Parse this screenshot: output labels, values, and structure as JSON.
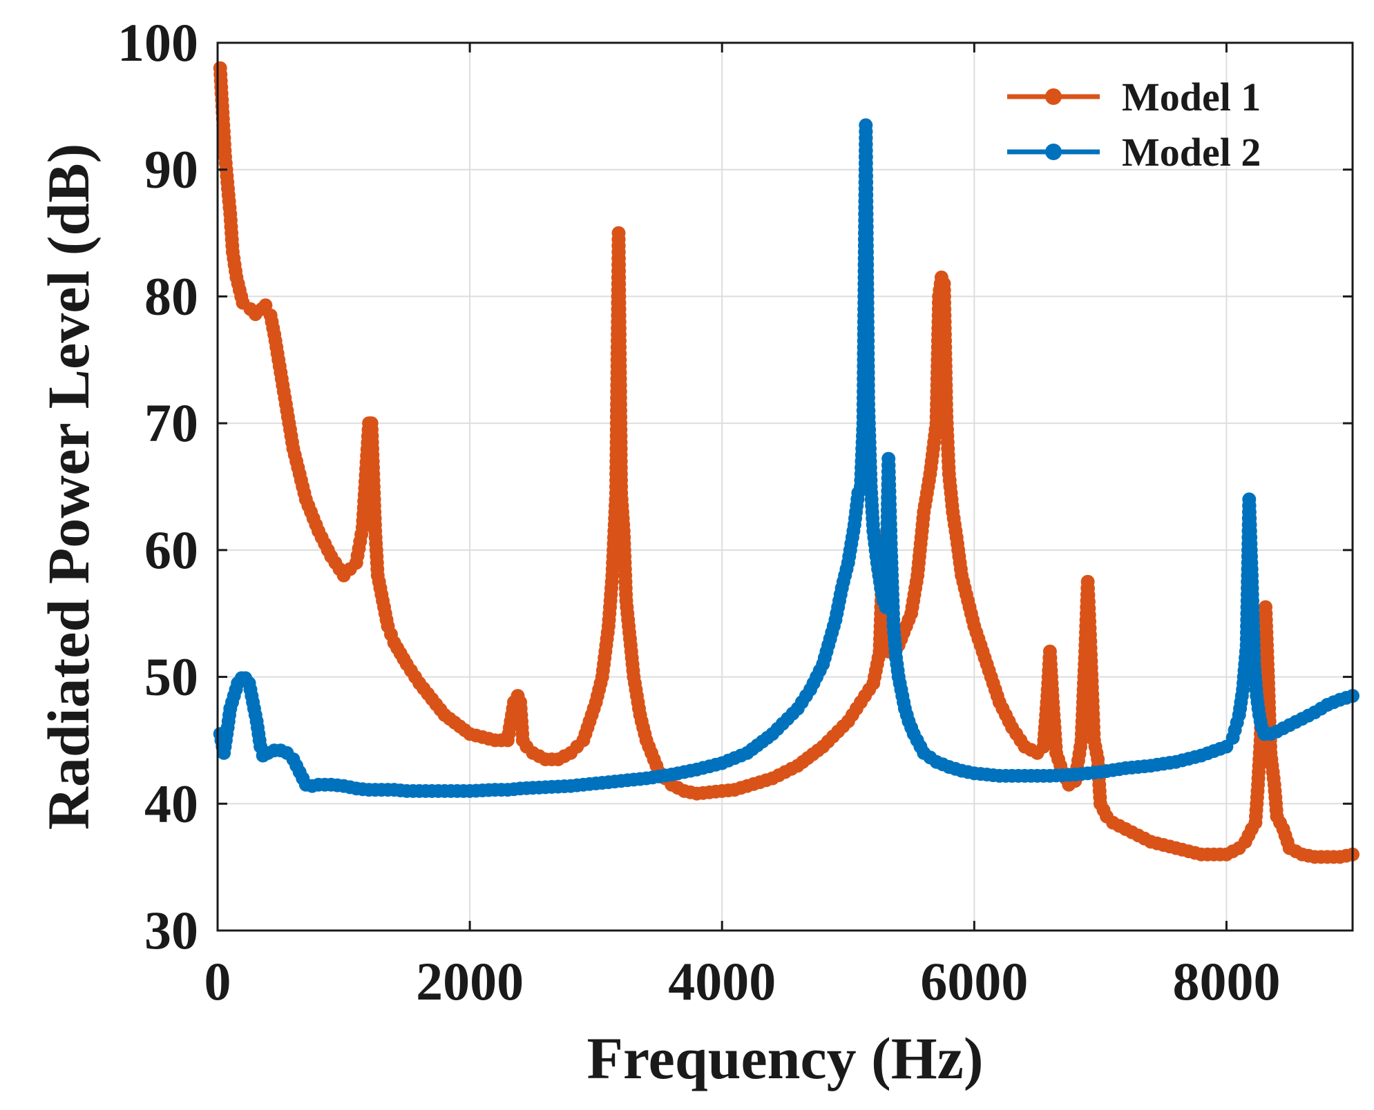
{
  "chart_data": {
    "type": "line",
    "title": "",
    "xlabel": "Frequency (Hz)",
    "ylabel": "Radiated Power Level (dB)",
    "xlim": [
      0,
      9000
    ],
    "ylim": [
      30,
      100
    ],
    "xticks": [
      0,
      2000,
      4000,
      6000,
      8000
    ],
    "yticks": [
      30,
      40,
      50,
      60,
      70,
      80,
      90,
      100
    ],
    "grid": true,
    "legend_position": "top-right",
    "colors": {
      "Model 1": "#d95319",
      "Model 2": "#0072bd",
      "axis": "#1a1a1a",
      "grid": "#dddddd"
    },
    "series": [
      {
        "name": "Model 1",
        "x": [
          20,
          60,
          100,
          120,
          150,
          200,
          260,
          300,
          350,
          380,
          420,
          450,
          500,
          550,
          600,
          700,
          800,
          900,
          1000,
          1100,
          1150,
          1200,
          1220,
          1250,
          1270,
          1300,
          1350,
          1400,
          1500,
          1600,
          1800,
          2000,
          2200,
          2300,
          2350,
          2380,
          2400,
          2420,
          2450,
          2500,
          2600,
          2700,
          2800,
          2900,
          3000,
          3050,
          3100,
          3130,
          3160,
          3180,
          3200,
          3220,
          3240,
          3270,
          3300,
          3350,
          3400,
          3500,
          3600,
          3700,
          3800,
          3900,
          4000,
          4100,
          4200,
          4400,
          4600,
          4800,
          5000,
          5100,
          5200,
          5250,
          5280,
          5300,
          5310,
          5320,
          5400,
          5500,
          5550,
          5600,
          5650,
          5700,
          5720,
          5740,
          5760,
          5780,
          5800,
          5830,
          5860,
          5900,
          5950,
          6000,
          6100,
          6200,
          6300,
          6400,
          6500,
          6550,
          6580,
          6600,
          6620,
          6650,
          6700,
          6750,
          6800,
          6850,
          6880,
          6900,
          6920,
          6950,
          6980,
          7000,
          7050,
          7100,
          7200,
          7400,
          7600,
          7800,
          8000,
          8100,
          8150,
          8200,
          8230,
          8250,
          8270,
          8290,
          8310,
          8330,
          8350,
          8380,
          8400,
          8450,
          8500,
          8600,
          8700,
          8800,
          8900,
          9000
        ],
        "y": [
          98,
          91,
          86.5,
          83.5,
          81.5,
          79.5,
          79,
          78.6,
          79,
          79.3,
          78.5,
          77,
          74,
          71,
          68,
          64,
          61.5,
          59.5,
          58,
          59,
          61.8,
          70,
          70,
          61.5,
          58,
          56.5,
          54,
          52.7,
          51,
          49.5,
          47,
          45.5,
          45,
          45,
          48,
          48.5,
          48,
          45,
          44.5,
          44,
          43.5,
          43.5,
          44,
          45,
          48,
          50,
          54,
          58,
          64.5,
          85,
          64.5,
          61.5,
          56,
          53,
          50,
          47,
          45,
          42.5,
          41.5,
          41,
          40.8,
          40.9,
          41,
          41.1,
          41.4,
          42,
          43,
          44.5,
          46.5,
          48,
          49.5,
          52,
          61,
          59,
          55,
          52,
          52.5,
          55,
          58,
          63,
          66,
          70,
          80,
          81.5,
          81,
          70.5,
          66,
          63,
          61,
          58,
          56,
          54,
          51,
          48,
          46,
          44.5,
          44,
          44.5,
          48.5,
          52,
          48.5,
          44,
          42.5,
          41.5,
          41.8,
          45,
          52,
          57.5,
          52.8,
          45,
          43.5,
          40,
          39,
          38.5,
          38,
          37,
          36.5,
          36,
          36,
          36.5,
          37,
          38,
          38.5,
          41.5,
          45,
          52,
          55.5,
          50,
          44,
          41.5,
          39,
          38,
          36.5,
          36,
          35.8,
          35.8,
          35.8,
          36
        ]
      },
      {
        "name": "Model 2",
        "x": [
          20,
          50,
          80,
          100,
          130,
          160,
          190,
          220,
          250,
          280,
          310,
          340,
          360,
          380,
          400,
          450,
          500,
          550,
          600,
          650,
          700,
          750,
          800,
          900,
          1000,
          1100,
          1200,
          1300,
          1400,
          1500,
          1600,
          1800,
          2000,
          2200,
          2300,
          2400,
          2600,
          2800,
          3000,
          3200,
          3400,
          3600,
          3800,
          4000,
          4200,
          4400,
          4600,
          4700,
          4800,
          4900,
          4950,
          5000,
          5050,
          5080,
          5100,
          5120,
          5140,
          5160,
          5180,
          5200,
          5230,
          5260,
          5280,
          5300,
          5320,
          5340,
          5360,
          5380,
          5400,
          5420,
          5450,
          5480,
          5520,
          5600,
          5700,
          5800,
          5900,
          6000,
          6200,
          6400,
          6600,
          6800,
          7000,
          7200,
          7400,
          7600,
          7800,
          8000,
          8050,
          8100,
          8130,
          8160,
          8180,
          8200,
          8220,
          8240,
          8260,
          8280,
          8300,
          8350,
          8400,
          8500,
          8600,
          8700,
          8800,
          8900,
          9000
        ],
        "y": [
          45.5,
          44,
          46,
          47.5,
          48.5,
          49.5,
          49.9,
          49.9,
          49.5,
          48,
          46.5,
          44.5,
          43.8,
          44,
          44,
          44.2,
          44.2,
          44,
          43.5,
          42.5,
          41.5,
          41.4,
          41.5,
          41.5,
          41.4,
          41.2,
          41.1,
          41.1,
          41.1,
          41,
          41,
          41,
          41,
          41.1,
          41.1,
          41.2,
          41.3,
          41.4,
          41.6,
          41.8,
          42,
          42.3,
          42.7,
          43.2,
          44,
          45.5,
          47.5,
          49,
          51,
          54.5,
          57,
          59,
          62,
          64.5,
          65,
          70,
          93.5,
          71.5,
          65,
          61.5,
          59,
          57,
          56,
          55.5,
          67.2,
          60,
          54,
          51.5,
          50,
          49,
          47.5,
          46.5,
          45.5,
          44,
          43.3,
          42.9,
          42.6,
          42.4,
          42.2,
          42.2,
          42.2,
          42.3,
          42.5,
          42.8,
          43,
          43.3,
          43.8,
          44.5,
          45.2,
          47,
          49,
          52.5,
          64,
          58,
          51,
          48.5,
          47,
          46,
          45.5,
          45.5,
          45.7,
          46.2,
          46.7,
          47.2,
          47.8,
          48.2,
          48.5
        ]
      }
    ]
  }
}
